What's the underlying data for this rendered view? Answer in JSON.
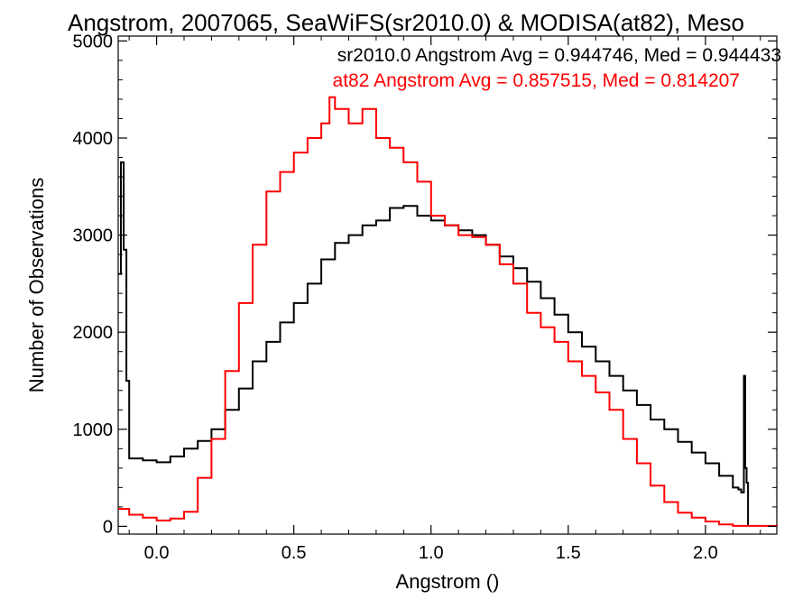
{
  "chart_data": {
    "type": "line",
    "title": "Angstrom, 2007065, SeaWiFS(sr2010.0) & MODISA(at82), Meso",
    "xlabel": "Angstrom ()",
    "ylabel": "Number of Observations",
    "xlim": [
      -0.14,
      2.26
    ],
    "ylim": [
      -80,
      5050
    ],
    "xticks": [
      0.0,
      0.5,
      1.0,
      1.5,
      2.0
    ],
    "xtick_labels": [
      "0.0",
      "0.5",
      "1.0",
      "1.5",
      "2.0"
    ],
    "yticks": [
      0,
      1000,
      2000,
      3000,
      4000,
      5000
    ],
    "ytick_labels": [
      "0",
      "1000",
      "2000",
      "3000",
      "4000",
      "5000"
    ],
    "grid": false,
    "annotations": [
      {
        "text": "sr2010.0 Angstrom Avg = 0.944746, Med = 0.944433",
        "color": "#000000"
      },
      {
        "text": "at82 Angstrom Avg = 0.857515, Med = 0.814207",
        "color": "#ff0000"
      }
    ],
    "series": [
      {
        "color": "#000000",
        "points": [
          [
            -0.14,
            2600
          ],
          [
            -0.13,
            3750
          ],
          [
            -0.12,
            2850
          ],
          [
            -0.11,
            1500
          ],
          [
            -0.1,
            700
          ],
          [
            -0.05,
            680
          ],
          [
            0.0,
            660
          ],
          [
            0.05,
            720
          ],
          [
            0.1,
            800
          ],
          [
            0.15,
            880
          ],
          [
            0.2,
            1000
          ],
          [
            0.25,
            1200
          ],
          [
            0.3,
            1420
          ],
          [
            0.35,
            1700
          ],
          [
            0.4,
            1900
          ],
          [
            0.45,
            2100
          ],
          [
            0.5,
            2300
          ],
          [
            0.55,
            2500
          ],
          [
            0.6,
            2750
          ],
          [
            0.65,
            2920
          ],
          [
            0.7,
            3000
          ],
          [
            0.75,
            3100
          ],
          [
            0.8,
            3150
          ],
          [
            0.85,
            3280
          ],
          [
            0.9,
            3300
          ],
          [
            0.95,
            3200
          ],
          [
            1.0,
            3150
          ],
          [
            1.05,
            3100
          ],
          [
            1.1,
            3050
          ],
          [
            1.15,
            3000
          ],
          [
            1.2,
            2900
          ],
          [
            1.25,
            2780
          ],
          [
            1.3,
            2660
          ],
          [
            1.35,
            2520
          ],
          [
            1.4,
            2350
          ],
          [
            1.45,
            2180
          ],
          [
            1.5,
            2000
          ],
          [
            1.55,
            1850
          ],
          [
            1.6,
            1700
          ],
          [
            1.65,
            1550
          ],
          [
            1.7,
            1400
          ],
          [
            1.75,
            1250
          ],
          [
            1.8,
            1100
          ],
          [
            1.85,
            1000
          ],
          [
            1.9,
            870
          ],
          [
            1.95,
            760
          ],
          [
            2.0,
            650
          ],
          [
            2.05,
            520
          ],
          [
            2.1,
            400
          ],
          [
            2.12,
            380
          ],
          [
            2.13,
            350
          ],
          [
            2.14,
            1550
          ],
          [
            2.145,
            600
          ],
          [
            2.15,
            450
          ],
          [
            2.155,
            0
          ]
        ]
      },
      {
        "color": "#ff0000",
        "points": [
          [
            -0.14,
            180
          ],
          [
            -0.1,
            120
          ],
          [
            -0.05,
            90
          ],
          [
            0.0,
            60
          ],
          [
            0.05,
            80
          ],
          [
            0.1,
            150
          ],
          [
            0.15,
            500
          ],
          [
            0.2,
            900
          ],
          [
            0.25,
            1600
          ],
          [
            0.3,
            2300
          ],
          [
            0.35,
            2900
          ],
          [
            0.4,
            3450
          ],
          [
            0.45,
            3650
          ],
          [
            0.5,
            3850
          ],
          [
            0.55,
            4000
          ],
          [
            0.6,
            4150
          ],
          [
            0.63,
            4420
          ],
          [
            0.65,
            4300
          ],
          [
            0.7,
            4150
          ],
          [
            0.75,
            4300
          ],
          [
            0.8,
            4000
          ],
          [
            0.85,
            3900
          ],
          [
            0.9,
            3750
          ],
          [
            0.95,
            3550
          ],
          [
            1.0,
            3200
          ],
          [
            1.05,
            3100
          ],
          [
            1.1,
            3000
          ],
          [
            1.15,
            2980
          ],
          [
            1.2,
            2900
          ],
          [
            1.25,
            2700
          ],
          [
            1.3,
            2500
          ],
          [
            1.35,
            2200
          ],
          [
            1.4,
            2050
          ],
          [
            1.45,
            1900
          ],
          [
            1.5,
            1700
          ],
          [
            1.55,
            1550
          ],
          [
            1.6,
            1380
          ],
          [
            1.65,
            1200
          ],
          [
            1.7,
            900
          ],
          [
            1.75,
            650
          ],
          [
            1.8,
            420
          ],
          [
            1.85,
            250
          ],
          [
            1.9,
            140
          ],
          [
            1.95,
            90
          ],
          [
            2.0,
            50
          ],
          [
            2.05,
            20
          ],
          [
            2.1,
            5
          ],
          [
            2.26,
            0
          ]
        ]
      }
    ]
  }
}
